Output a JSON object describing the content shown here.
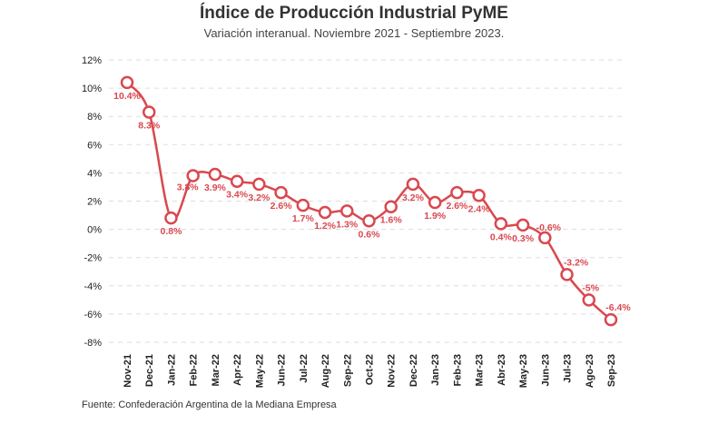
{
  "chart_data": {
    "type": "line",
    "title": "Índice de Producción Industrial PyME",
    "subtitle": "Variación interanual. Noviembre 2021 - Septiembre 2023.",
    "source": "Fuente: Confederación Argentina de la Mediana Empresa",
    "xlabel": "",
    "ylabel": "",
    "ylim": [
      -8,
      12
    ],
    "yticks": [
      12,
      10,
      8,
      6,
      4,
      2,
      0,
      -2,
      -4,
      -6,
      -8
    ],
    "ytick_labels": [
      "12%",
      "10%",
      "8%",
      "6%",
      "4%",
      "2%",
      "0%",
      "-2%",
      "-4%",
      "-6%",
      "-8%"
    ],
    "grid": true,
    "color": "#d9484f",
    "categories": [
      "Nov-21",
      "Dec-21",
      "Jan-22",
      "Feb-22",
      "Mar-22",
      "Apr-22",
      "May-22",
      "Jun-22",
      "Jul-22",
      "Aug-22",
      "Sep-22",
      "Oct-22",
      "Nov-22",
      "Dec-22",
      "Jan-23",
      "Feb-23",
      "Mar-23",
      "Abr-23",
      "May-23",
      "Jun-23",
      "Jul-23",
      "Ago-23",
      "Sep-23"
    ],
    "values": [
      10.4,
      8.3,
      0.8,
      3.8,
      3.9,
      3.4,
      3.2,
      2.6,
      1.7,
      1.2,
      1.3,
      0.6,
      1.6,
      3.2,
      1.9,
      2.6,
      2.4,
      0.4,
      0.3,
      -0.6,
      -3.2,
      -5,
      -6.4
    ],
    "data_labels": [
      "10.4%",
      "8.3%",
      "0.8%",
      "3.8%",
      "3.9%",
      "3.4%",
      "3.2%",
      "2.6%",
      "1.7%",
      "1.2%",
      "1.3%",
      "0.6%",
      "1.6%",
      "3.2%",
      "1.9%",
      "2.6%",
      "2.4%",
      "0.4%",
      "0.3%",
      "-0.6%",
      "-3.2%",
      "-5%",
      "-6.4%"
    ]
  }
}
